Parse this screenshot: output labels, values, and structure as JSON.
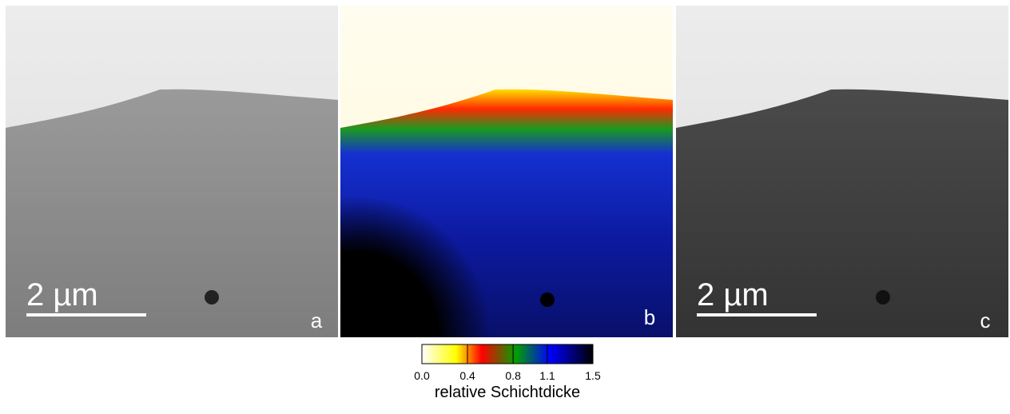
{
  "panels": [
    {
      "label": "a",
      "scale_bar": "2 µm"
    },
    {
      "label": "b"
    },
    {
      "label": "c",
      "scale_bar": "2 µm"
    }
  ],
  "colorbar": {
    "ticks": [
      "0.0",
      "0.4",
      "0.8",
      "1.1",
      "1.5"
    ],
    "label": "relative Schichtdicke"
  }
}
